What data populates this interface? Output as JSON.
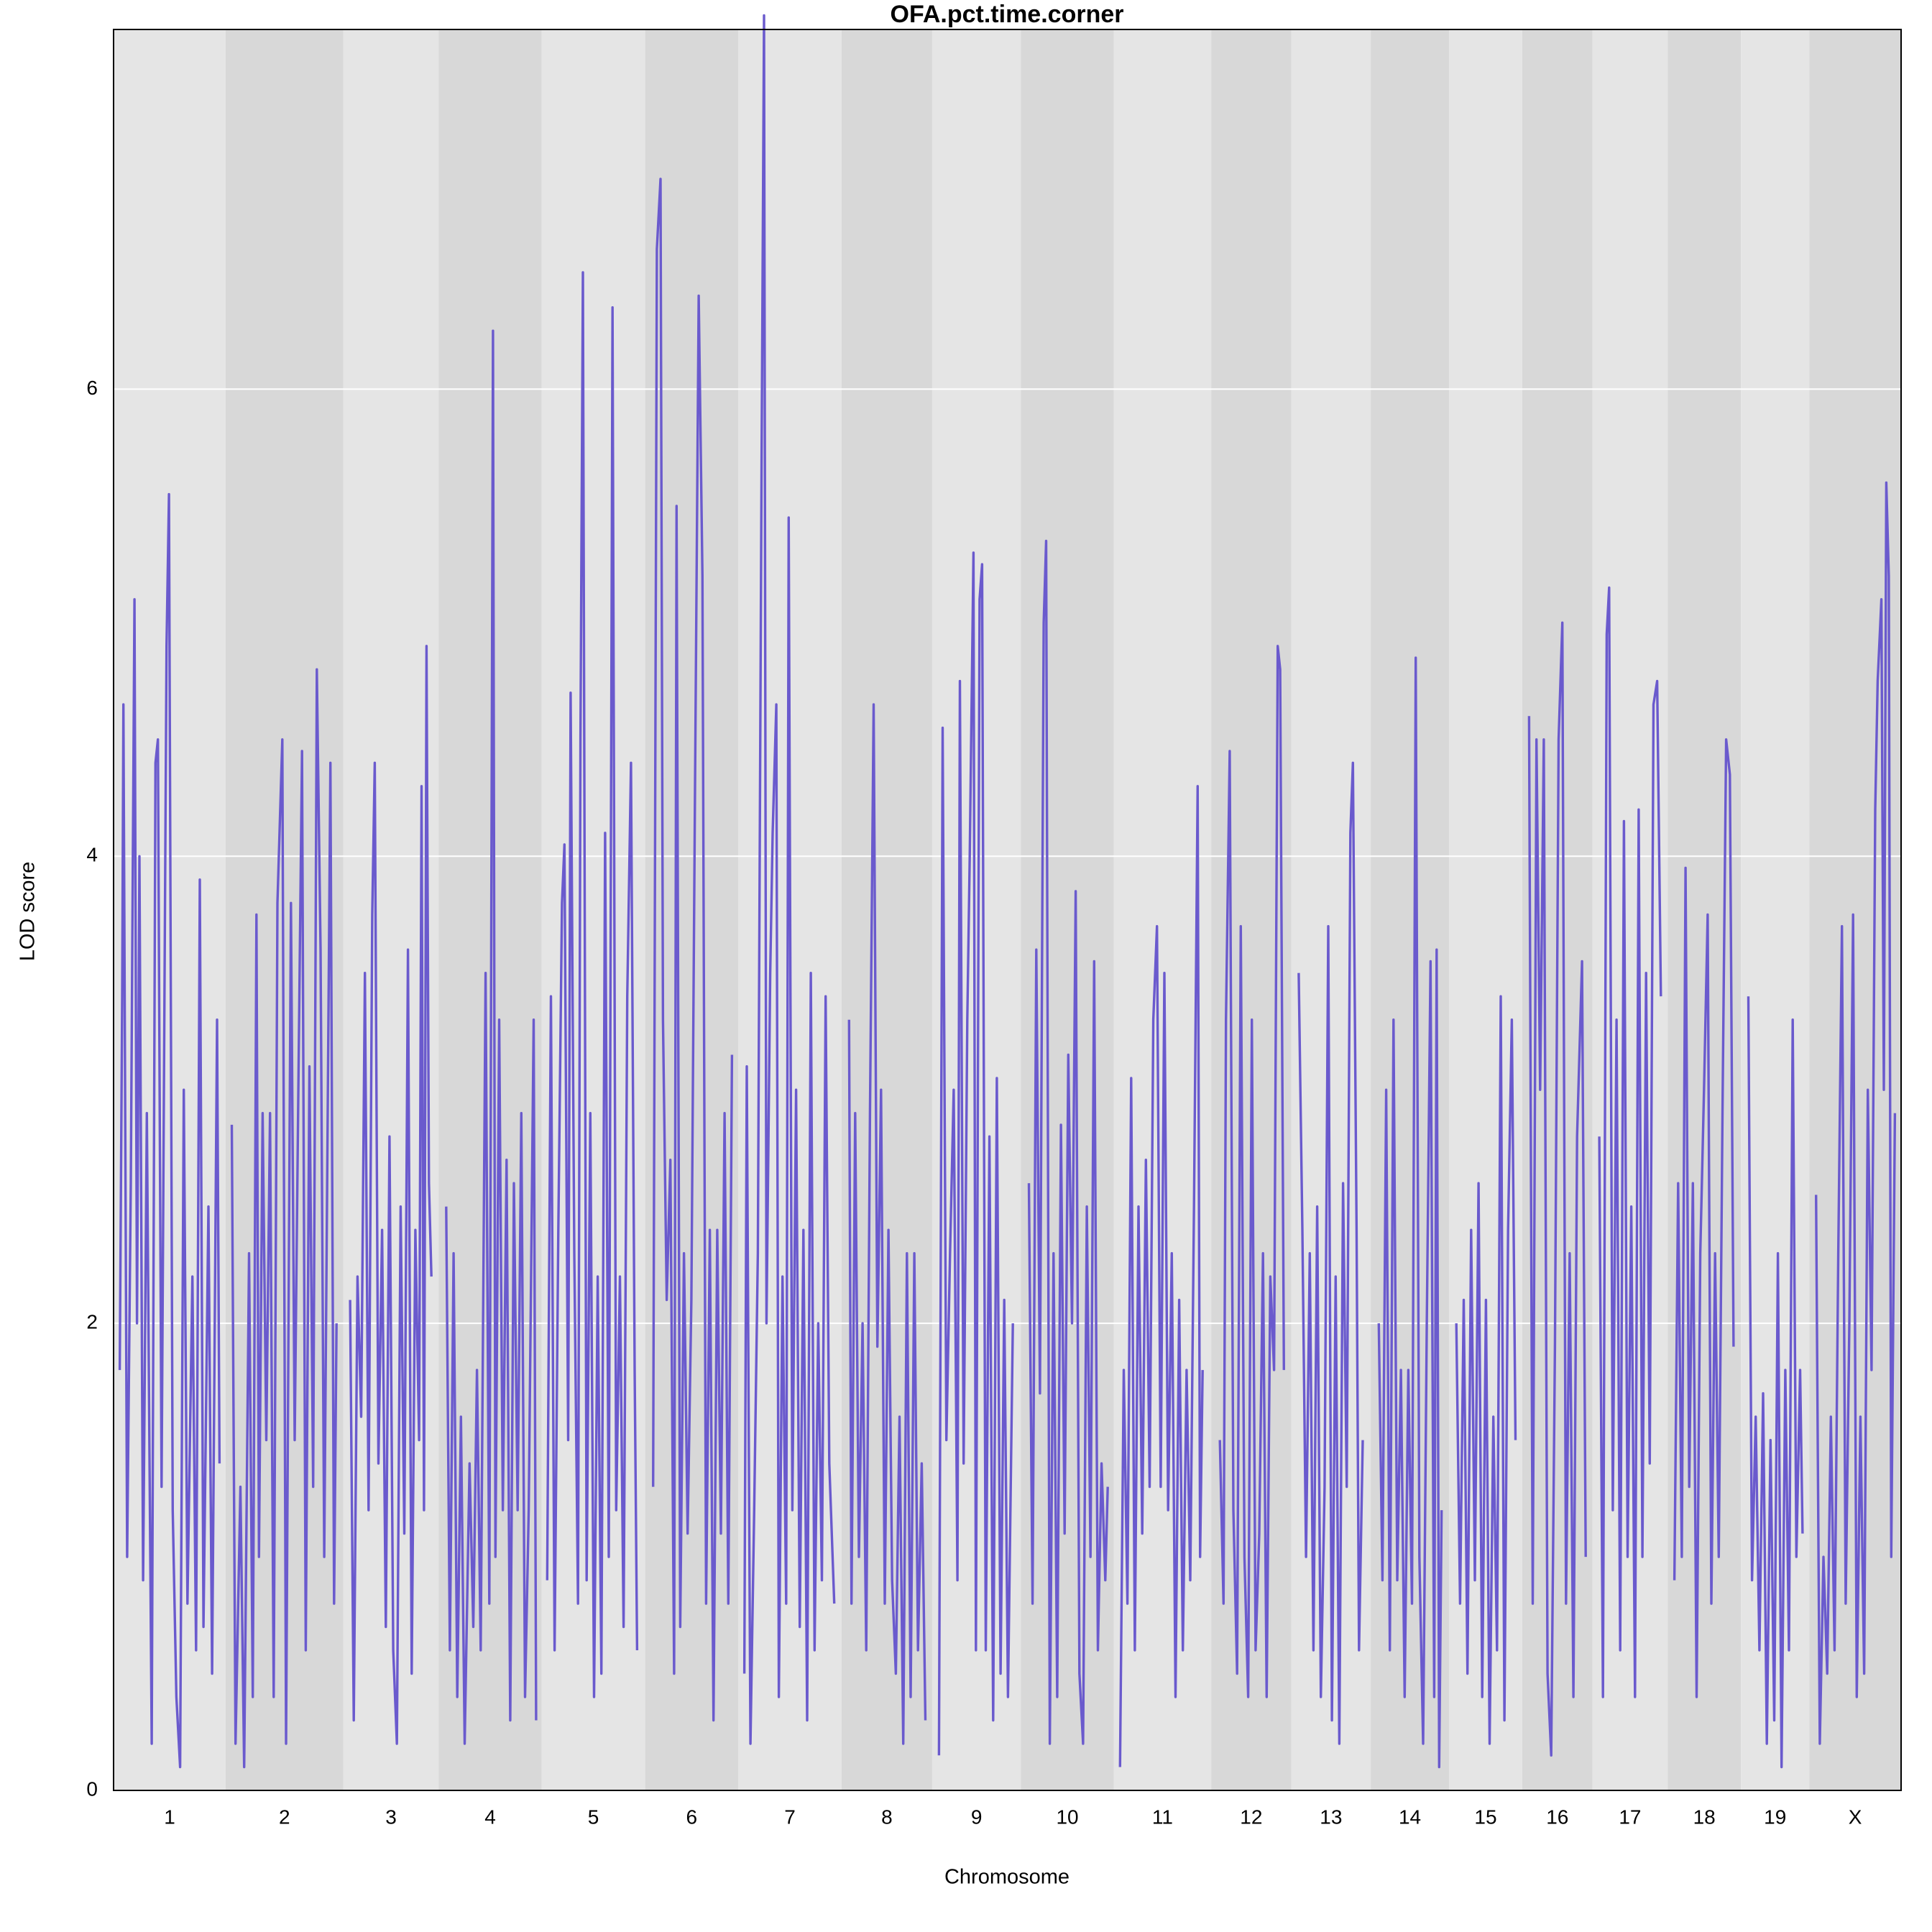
{
  "chart_data": {
    "type": "lod",
    "title": "OFA.pct.time.corner",
    "xlabel": "Chromosome",
    "ylabel": "LOD score",
    "color": "#6a5acd",
    "grid": true,
    "xlim": [
      0,
      1451
    ],
    "ylim": [
      0,
      7.54
    ],
    "yticks": [
      0,
      2,
      4,
      6
    ],
    "chromosomes": [
      {
        "name": "1",
        "x": [
          5,
          7,
          8,
          11,
          14,
          17,
          19,
          21,
          24,
          27,
          31,
          34,
          36,
          39,
          43,
          45,
          48,
          51,
          54,
          57,
          60,
          64,
          67,
          70,
          73,
          77,
          80,
          84,
          86
        ],
        "values": [
          1.8,
          3.4,
          4.65,
          1.0,
          2.6,
          5.1,
          2.0,
          4.0,
          0.9,
          2.9,
          0.2,
          4.4,
          4.5,
          1.3,
          4.9,
          5.55,
          1.2,
          0.4,
          0.1,
          3.0,
          0.8,
          2.2,
          0.6,
          3.9,
          0.7,
          2.5,
          0.5,
          3.3,
          1.4
        ]
      },
      {
        "name": "2",
        "x": [
          96,
          99,
          103,
          106,
          110,
          113,
          116,
          118,
          121,
          124,
          127,
          130,
          133,
          137,
          140,
          144,
          147,
          150,
          153,
          156,
          159,
          162,
          165,
          168,
          171,
          174,
          176,
          179,
          181
        ],
        "values": [
          2.85,
          0.2,
          1.3,
          0.1,
          2.3,
          0.4,
          3.75,
          1.0,
          2.9,
          1.5,
          2.9,
          0.4,
          3.8,
          4.5,
          0.2,
          3.8,
          1.5,
          3.0,
          4.45,
          0.6,
          3.1,
          1.3,
          4.8,
          3.6,
          1.0,
          3.0,
          4.4,
          0.8,
          2.0
        ]
      },
      {
        "name": "3",
        "x": [
          192,
          195,
          198,
          201,
          204,
          207,
          210,
          212,
          215,
          218,
          221,
          224,
          227,
          230,
          233,
          236,
          239,
          242,
          245,
          248,
          250,
          252,
          254,
          256,
          258
        ],
        "values": [
          2.1,
          0.3,
          2.2,
          1.6,
          3.5,
          1.2,
          3.75,
          4.4,
          1.4,
          2.4,
          0.7,
          2.8,
          0.6,
          0.2,
          2.5,
          1.1,
          3.6,
          0.5,
          2.4,
          1.5,
          4.3,
          1.2,
          4.9,
          2.6,
          2.2
        ]
      },
      {
        "name": "4",
        "x": [
          270,
          273,
          276,
          279,
          282,
          285,
          289,
          292,
          295,
          298,
          302,
          305,
          308,
          310,
          313,
          316,
          319,
          322,
          325,
          328,
          331,
          334,
          337,
          341,
          343
        ],
        "values": [
          2.5,
          0.6,
          2.3,
          0.4,
          1.6,
          0.2,
          1.4,
          0.7,
          1.8,
          0.6,
          3.5,
          0.8,
          6.25,
          1.0,
          3.3,
          1.2,
          2.7,
          0.3,
          2.6,
          1.2,
          2.9,
          0.4,
          1.2,
          3.3,
          0.3
        ]
      },
      {
        "name": "5",
        "x": [
          352,
          355,
          358,
          361,
          364,
          366,
          369,
          371,
          374,
          377,
          379,
          381,
          384,
          387,
          390,
          393,
          396,
          399,
          402,
          405,
          408,
          411,
          414,
          417,
          420,
          423,
          425
        ],
        "values": [
          0.9,
          3.4,
          0.6,
          2.4,
          3.8,
          4.05,
          1.5,
          4.7,
          2.3,
          0.8,
          4.5,
          6.5,
          0.9,
          2.9,
          0.4,
          2.2,
          0.5,
          4.1,
          1.0,
          6.35,
          1.2,
          2.2,
          0.7,
          3.4,
          4.4,
          1.8,
          0.6
        ]
      },
      {
        "name": "6",
        "x": [
          438,
          441,
          444,
          446,
          449,
          452,
          455,
          457,
          460,
          463,
          466,
          469,
          472,
          475,
          478,
          481,
          484,
          487,
          490,
          493,
          496,
          499,
          502
        ],
        "values": [
          1.3,
          6.6,
          6.9,
          3.3,
          2.1,
          2.7,
          0.5,
          5.5,
          0.7,
          2.3,
          1.1,
          2.1,
          4.3,
          6.4,
          5.2,
          0.8,
          2.4,
          0.3,
          2.4,
          1.1,
          2.9,
          0.8,
          3.15
        ]
      },
      {
        "name": "7",
        "x": [
          512,
          514,
          517,
          520,
          523,
          526,
          528,
          530,
          533,
          535,
          538,
          540,
          543,
          546,
          548,
          551,
          554,
          557,
          560,
          563,
          566,
          569,
          572,
          575,
          578,
          581,
          585
        ],
        "values": [
          0.5,
          3.1,
          0.2,
          1.2,
          2.3,
          5.7,
          7.6,
          2.0,
          3.5,
          4.1,
          4.65,
          0.4,
          2.2,
          0.8,
          5.45,
          1.2,
          3.0,
          0.7,
          2.4,
          0.3,
          3.5,
          0.6,
          2.0,
          0.9,
          3.4,
          1.4,
          0.8
        ]
      },
      {
        "name": "8",
        "x": [
          597,
          599,
          602,
          605,
          608,
          611,
          614,
          617,
          620,
          623,
          626,
          629,
          632,
          635,
          638,
          641,
          644,
          647,
          650,
          653,
          656,
          659
        ],
        "values": [
          3.3,
          0.8,
          2.9,
          1.0,
          2.0,
          0.6,
          2.9,
          4.65,
          1.9,
          3.0,
          0.8,
          2.4,
          0.9,
          0.5,
          1.6,
          0.2,
          2.3,
          0.4,
          2.3,
          0.6,
          1.4,
          0.3
        ]
      },
      {
        "name": "9",
        "x": [
          670,
          673,
          676,
          679,
          682,
          685,
          687,
          690,
          693,
          695,
          698,
          700,
          703,
          705,
          708,
          711,
          714,
          717,
          720,
          723,
          726,
          730
        ],
        "values": [
          0.15,
          4.55,
          1.5,
          2.3,
          3.0,
          0.9,
          4.75,
          1.4,
          3.3,
          4.0,
          5.3,
          0.6,
          5.1,
          5.25,
          0.6,
          2.8,
          0.3,
          3.05,
          0.5,
          2.1,
          0.4,
          2.0
        ]
      },
      {
        "name": "10",
        "x": [
          743,
          746,
          749,
          752,
          755,
          757,
          760,
          763,
          766,
          769,
          772,
          775,
          778,
          781,
          784,
          787,
          790,
          793,
          796,
          799,
          802,
          805,
          807
        ],
        "values": [
          2.6,
          0.8,
          3.6,
          1.7,
          5.0,
          5.35,
          0.2,
          2.3,
          0.4,
          2.85,
          1.1,
          3.15,
          2.0,
          3.85,
          0.5,
          0.2,
          2.5,
          1.0,
          3.55,
          0.6,
          1.4,
          0.9,
          1.3
        ]
      },
      {
        "name": "11",
        "x": [
          817,
          820,
          823,
          826,
          829,
          832,
          835,
          838,
          841,
          844,
          847,
          850,
          853,
          856,
          859,
          862,
          865,
          868,
          871,
          874,
          877,
          880,
          882,
          884
        ],
        "values": [
          0.1,
          1.8,
          0.8,
          3.05,
          0.6,
          2.5,
          1.1,
          2.7,
          1.3,
          3.3,
          3.7,
          1.3,
          3.5,
          1.2,
          2.3,
          0.4,
          2.1,
          0.6,
          1.8,
          0.9,
          2.5,
          4.3,
          1.0,
          1.8
        ]
      },
      {
        "name": "12",
        "x": [
          898,
          901,
          903,
          906,
          909,
          912,
          915,
          918,
          921,
          924,
          927,
          930,
          933,
          936,
          939,
          942,
          945,
          947,
          950
        ],
        "values": [
          1.5,
          0.8,
          3.3,
          4.45,
          1.2,
          0.5,
          3.7,
          1.0,
          0.4,
          3.3,
          0.6,
          1.1,
          2.3,
          0.4,
          2.2,
          1.8,
          4.9,
          4.8,
          1.8
        ]
      },
      {
        "name": "13",
        "x": [
          962,
          965,
          968,
          971,
          974,
          977,
          980,
          983,
          986,
          989,
          992,
          995,
          998,
          1001,
          1004,
          1006,
          1009,
          1011,
          1014
        ],
        "values": [
          3.5,
          2.4,
          1.0,
          2.3,
          0.6,
          2.5,
          0.4,
          1.3,
          3.7,
          0.3,
          2.2,
          0.2,
          2.6,
          1.3,
          4.1,
          4.4,
          2.4,
          0.6,
          1.5
        ]
      },
      {
        "name": "14",
        "x": [
          1027,
          1030,
          1033,
          1036,
          1039,
          1042,
          1045,
          1048,
          1051,
          1054,
          1057,
          1060,
          1063,
          1066,
          1069,
          1072,
          1074,
          1076,
          1078
        ],
        "values": [
          2.0,
          0.9,
          3.0,
          0.6,
          3.3,
          0.9,
          1.8,
          0.4,
          1.8,
          0.8,
          4.85,
          1.0,
          0.2,
          2.0,
          3.55,
          0.4,
          3.6,
          0.1,
          1.2
        ]
      },
      {
        "name": "15",
        "x": [
          1090,
          1093,
          1096,
          1099,
          1102,
          1105,
          1108,
          1111,
          1114,
          1117,
          1120,
          1123,
          1126,
          1129,
          1132,
          1135,
          1138
        ],
        "values": [
          2.0,
          0.8,
          2.1,
          0.5,
          2.4,
          0.9,
          2.6,
          0.4,
          2.1,
          0.2,
          1.6,
          0.6,
          3.4,
          0.3,
          2.4,
          3.3,
          1.5
        ]
      },
      {
        "name": "16",
        "x": [
          1149,
          1152,
          1155,
          1158,
          1161,
          1164,
          1167,
          1170,
          1173,
          1176,
          1179,
          1182,
          1185,
          1188,
          1192,
          1195
        ],
        "values": [
          4.6,
          0.8,
          4.5,
          3.0,
          4.5,
          0.5,
          0.15,
          1.9,
          4.5,
          5.0,
          0.8,
          2.3,
          0.4,
          2.8,
          3.55,
          1.0
        ]
      },
      {
        "name": "17",
        "x": [
          1206,
          1209,
          1212,
          1214,
          1217,
          1220,
          1223,
          1226,
          1229,
          1232,
          1235,
          1238,
          1241,
          1244,
          1247,
          1250,
          1253,
          1256
        ],
        "values": [
          2.8,
          0.4,
          4.95,
          5.15,
          1.2,
          3.3,
          0.6,
          4.15,
          1.0,
          2.5,
          0.4,
          4.2,
          1.0,
          3.5,
          1.4,
          4.65,
          4.75,
          3.4
        ]
      },
      {
        "name": "18",
        "x": [
          1267,
          1270,
          1273,
          1276,
          1279,
          1282,
          1285,
          1288,
          1291,
          1294,
          1297,
          1300,
          1303,
          1306,
          1309,
          1312,
          1315
        ],
        "values": [
          0.9,
          2.6,
          1.0,
          3.95,
          1.3,
          2.6,
          0.4,
          2.3,
          3.0,
          3.75,
          0.8,
          2.3,
          1.0,
          2.9,
          4.5,
          4.35,
          1.9
        ]
      },
      {
        "name": "19",
        "x": [
          1327,
          1330,
          1333,
          1336,
          1339,
          1342,
          1345,
          1348,
          1351,
          1354,
          1357,
          1360,
          1363,
          1366,
          1369,
          1371
        ],
        "values": [
          3.4,
          0.9,
          1.6,
          0.6,
          1.7,
          0.2,
          1.5,
          0.3,
          2.3,
          0.1,
          1.8,
          0.6,
          3.3,
          1.0,
          1.8,
          1.1
        ]
      },
      {
        "name": "X",
        "x": [
          1382,
          1385,
          1388,
          1391,
          1394,
          1397,
          1400,
          1403,
          1406,
          1409,
          1412,
          1415,
          1418,
          1421,
          1424,
          1427,
          1430,
          1432,
          1435,
          1437,
          1439,
          1441,
          1443,
          1446
        ],
        "values": [
          2.55,
          0.2,
          1.0,
          0.5,
          1.6,
          0.6,
          2.3,
          3.7,
          0.8,
          2.0,
          3.75,
          0.4,
          1.6,
          0.5,
          3.0,
          1.8,
          4.2,
          4.75,
          5.1,
          3.0,
          5.6,
          5.2,
          1.0,
          2.9
        ]
      }
    ]
  }
}
